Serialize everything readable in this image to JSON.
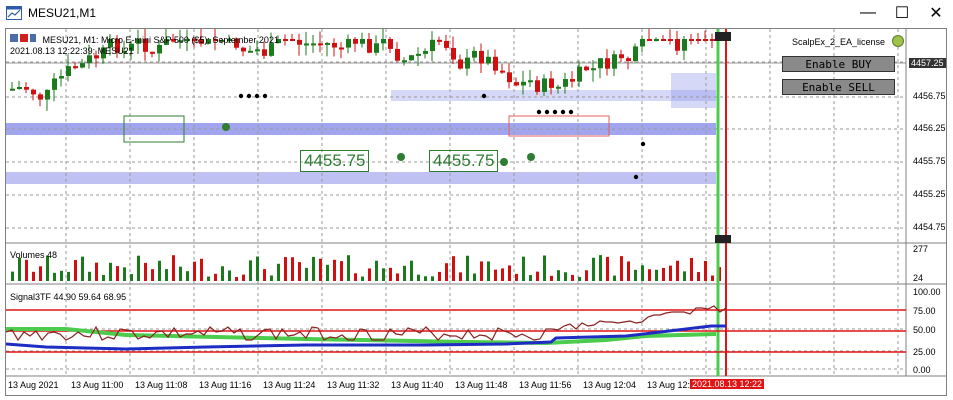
{
  "window": {
    "title": "MESU21,M1",
    "minimize": "—",
    "maximize": "☐",
    "close": "✕"
  },
  "chart": {
    "header": "MESU21, M1:  Micro E-mini S&P 500 ($5): September 2021",
    "datetime_label": "2021.08.13 12:22:39; MESU21",
    "ea_name": "ScalpEx_2_EA_license",
    "current_price": "4457.25",
    "price_labels": [
      "4456.75",
      "4456.25",
      "4455.75",
      "4455.25",
      "4454.75"
    ],
    "price_markers": [
      "4455.75",
      "4455.75"
    ],
    "buttons": {
      "buy": "Enable BUY",
      "sell": "Enable SELL"
    },
    "volumes_label": "Volumes 48",
    "volume_axis": [
      "277",
      "24"
    ],
    "signal_label": "Signal3TF 44.90 59.64 68.95",
    "signal_axis": [
      "100.00",
      "75.00",
      "50.00",
      "25.00",
      "0.00"
    ],
    "time_labels": [
      "13 Aug 2021",
      "13 Aug 11:00",
      "13 Aug 11:08",
      "13 Aug 11:16",
      "13 Aug 11:24",
      "13 Aug 11:32",
      "13 Aug 11:40",
      "13 Aug 11:48",
      "13 Aug 11:56",
      "13 Aug 12:04",
      "13 Aug 12:"
    ],
    "time_highlight": "2021.08.13 12:22",
    "colors": {
      "bull": "#1b7a1b",
      "bear": "#d01010",
      "band": "#8a8ee8",
      "green_line": "#4ccc4c",
      "red_line": "#e01414"
    }
  }
}
